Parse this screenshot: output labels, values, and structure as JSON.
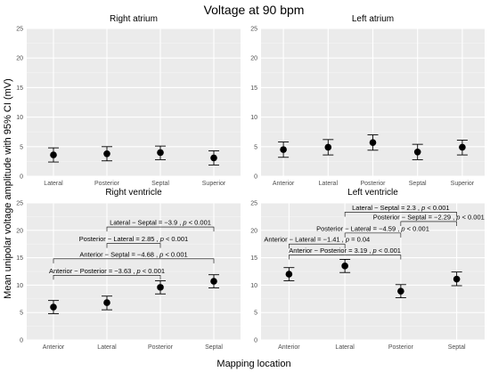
{
  "figure": {
    "title": "Voltage at 90 bpm",
    "xlabel": "Mapping location",
    "ylabel": "Mean unipolar voltage amplitude with 95% CI (mV)"
  },
  "chart_data": [
    {
      "type": "scatter",
      "panel": "Right atrium",
      "categories": [
        "Lateral",
        "Posterior",
        "Septal",
        "Superior"
      ],
      "values": [
        3.6,
        3.8,
        4.0,
        3.1
      ],
      "ci_low": [
        2.4,
        2.6,
        2.8,
        1.9
      ],
      "ci_high": [
        4.8,
        5.0,
        5.1,
        4.3
      ],
      "ylim": [
        0,
        25
      ],
      "yticks": [
        0,
        5,
        10,
        15,
        20,
        25
      ],
      "annotations": []
    },
    {
      "type": "scatter",
      "panel": "Left atrium",
      "categories": [
        "Anterior",
        "Lateral",
        "Posterior",
        "Septal",
        "Superior"
      ],
      "values": [
        4.5,
        4.9,
        5.7,
        4.1,
        4.9
      ],
      "ci_low": [
        3.2,
        3.6,
        4.4,
        2.8,
        3.6
      ],
      "ci_high": [
        5.8,
        6.2,
        7.0,
        5.4,
        6.1
      ],
      "ylim": [
        0,
        25
      ],
      "yticks": [
        0,
        5,
        10,
        15,
        20,
        25
      ],
      "annotations": []
    },
    {
      "type": "scatter",
      "panel": "Right ventricle",
      "categories": [
        "Anterior",
        "Lateral",
        "Posterior",
        "Septal"
      ],
      "values": [
        6.0,
        6.8,
        9.6,
        10.7
      ],
      "ci_low": [
        4.8,
        5.5,
        8.4,
        9.5
      ],
      "ci_high": [
        7.2,
        8.0,
        10.8,
        11.9
      ],
      "ylim": [
        0,
        25
      ],
      "yticks": [
        0,
        5,
        10,
        15,
        20,
        25
      ],
      "annotations": [
        {
          "a": "Lateral",
          "b": "Septal",
          "y": 20.6,
          "text": "Lateral − Septal = −3.9 , p < 0.001"
        },
        {
          "a": "Lateral",
          "b": "Posterior",
          "y": 17.6,
          "text": "Posterior − Lateral = 2.85 , p < 0.001"
        },
        {
          "a": "Anterior",
          "b": "Septal",
          "y": 14.8,
          "text": "Anterior − Septal = −4.68 , p < 0.001"
        },
        {
          "a": "Anterior",
          "b": "Posterior",
          "y": 11.8,
          "text": "Anterior − Posterior = −3.63 , p < 0.001"
        }
      ]
    },
    {
      "type": "scatter",
      "panel": "Left ventricle",
      "categories": [
        "Anterior",
        "Lateral",
        "Posterior",
        "Septal"
      ],
      "values": [
        12.0,
        13.5,
        8.9,
        11.1
      ],
      "ci_low": [
        10.8,
        12.3,
        7.7,
        9.9
      ],
      "ci_high": [
        13.2,
        14.7,
        10.1,
        12.4
      ],
      "ylim": [
        0,
        25
      ],
      "yticks": [
        0,
        5,
        10,
        15,
        20,
        25
      ],
      "annotations": [
        {
          "a": "Lateral",
          "b": "Septal",
          "y": 23.3,
          "text": "Lateral − Septal = 2.3 , p < 0.001"
        },
        {
          "a": "Posterior",
          "b": "Septal",
          "y": 21.6,
          "text": "Posterior − Septal = −2.29 , p < 0.001"
        },
        {
          "a": "Lateral",
          "b": "Posterior",
          "y": 19.5,
          "text": "Posterior − Lateral = −4.59 , p < 0.001"
        },
        {
          "a": "Anterior",
          "b": "Lateral",
          "y": 17.5,
          "text": "Anterior − Lateral = −1.41 , p = 0.04"
        },
        {
          "a": "Anterior",
          "b": "Posterior",
          "y": 15.5,
          "text": "Anterior − Posterior = 3.19 , p < 0.001"
        }
      ]
    }
  ]
}
